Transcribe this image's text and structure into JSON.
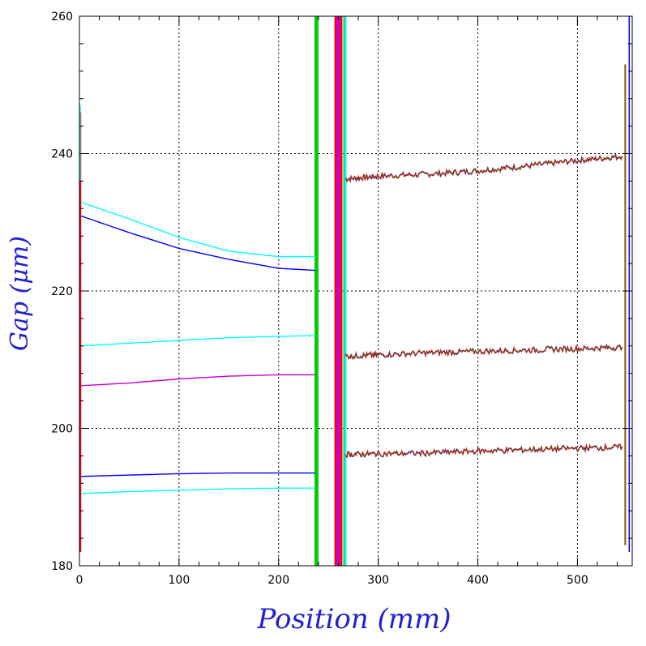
{
  "chart_data": {
    "type": "line",
    "xlabel": "Position (mm)",
    "ylabel": "Gap (μm)",
    "xlim": [
      0,
      555
    ],
    "ylim": [
      180,
      260
    ],
    "x_ticks": [
      0,
      100,
      200,
      300,
      400,
      500
    ],
    "y_ticks": [
      180,
      200,
      220,
      240,
      260
    ],
    "x_tick_labels": [
      "0",
      "100",
      "200",
      "300",
      "400",
      "500"
    ],
    "y_tick_labels": [
      "180",
      "200",
      "220",
      "240",
      "260"
    ],
    "grid": true,
    "series_colors": [
      "#ff0000",
      "#00cc00",
      "#0000ff",
      "#00ffff",
      "#cc00cc",
      "#885500"
    ],
    "traces": [
      {
        "color": "#00ffff",
        "x": [
          0,
          50,
          100,
          150,
          200,
          237
        ],
        "y": [
          233,
          230.5,
          227.8,
          225.8,
          225,
          225
        ]
      },
      {
        "color": "#0000ff",
        "x": [
          0,
          50,
          100,
          150,
          200,
          237
        ],
        "y": [
          231,
          228.5,
          226.2,
          224.6,
          223.3,
          223
        ]
      },
      {
        "color": "#00ffff",
        "x": [
          0,
          50,
          100,
          150,
          200,
          237
        ],
        "y": [
          212,
          212.4,
          212.8,
          213.2,
          213.4,
          213.5
        ]
      },
      {
        "color": "#cc00cc",
        "x": [
          0,
          50,
          100,
          150,
          200,
          237
        ],
        "y": [
          206.2,
          206.6,
          207.2,
          207.6,
          207.8,
          207.8
        ]
      },
      {
        "color": "#0000ff",
        "x": [
          0,
          50,
          100,
          150,
          200,
          237
        ],
        "y": [
          193,
          193.2,
          193.4,
          193.5,
          193.5,
          193.5
        ]
      },
      {
        "color": "#00ffff",
        "x": [
          0,
          50,
          100,
          150,
          200,
          237
        ],
        "y": [
          190.5,
          190.8,
          191,
          191.2,
          191.3,
          191.3
        ]
      },
      {
        "color": "#ff0000",
        "x": [
          267,
          300,
          350,
          400,
          450,
          500,
          545
        ],
        "y": [
          236.3,
          236.7,
          237,
          237.5,
          238.2,
          239,
          239.6
        ]
      },
      {
        "color": "#ff0000",
        "x": [
          267,
          300,
          350,
          400,
          450,
          500,
          545
        ],
        "y": [
          210.5,
          210.7,
          211,
          211.2,
          211.4,
          211.6,
          211.8
        ]
      },
      {
        "color": "#ff0000",
        "x": [
          267,
          300,
          350,
          400,
          450,
          500,
          545
        ],
        "y": [
          196.2,
          196.3,
          196.4,
          196.7,
          196.9,
          197.1,
          197.3
        ]
      }
    ],
    "vertical_bands": [
      {
        "color": "#00cc00",
        "x": [
          236,
          240
        ]
      },
      {
        "color": "#ff0000",
        "x": [
          256,
          264
        ]
      },
      {
        "color": "#cc00cc",
        "x": [
          258,
          262
        ]
      },
      {
        "color": "#00cc00",
        "x": [
          265,
          268
        ]
      },
      {
        "color": "#00ffff",
        "x": [
          266,
          268
        ]
      }
    ]
  }
}
